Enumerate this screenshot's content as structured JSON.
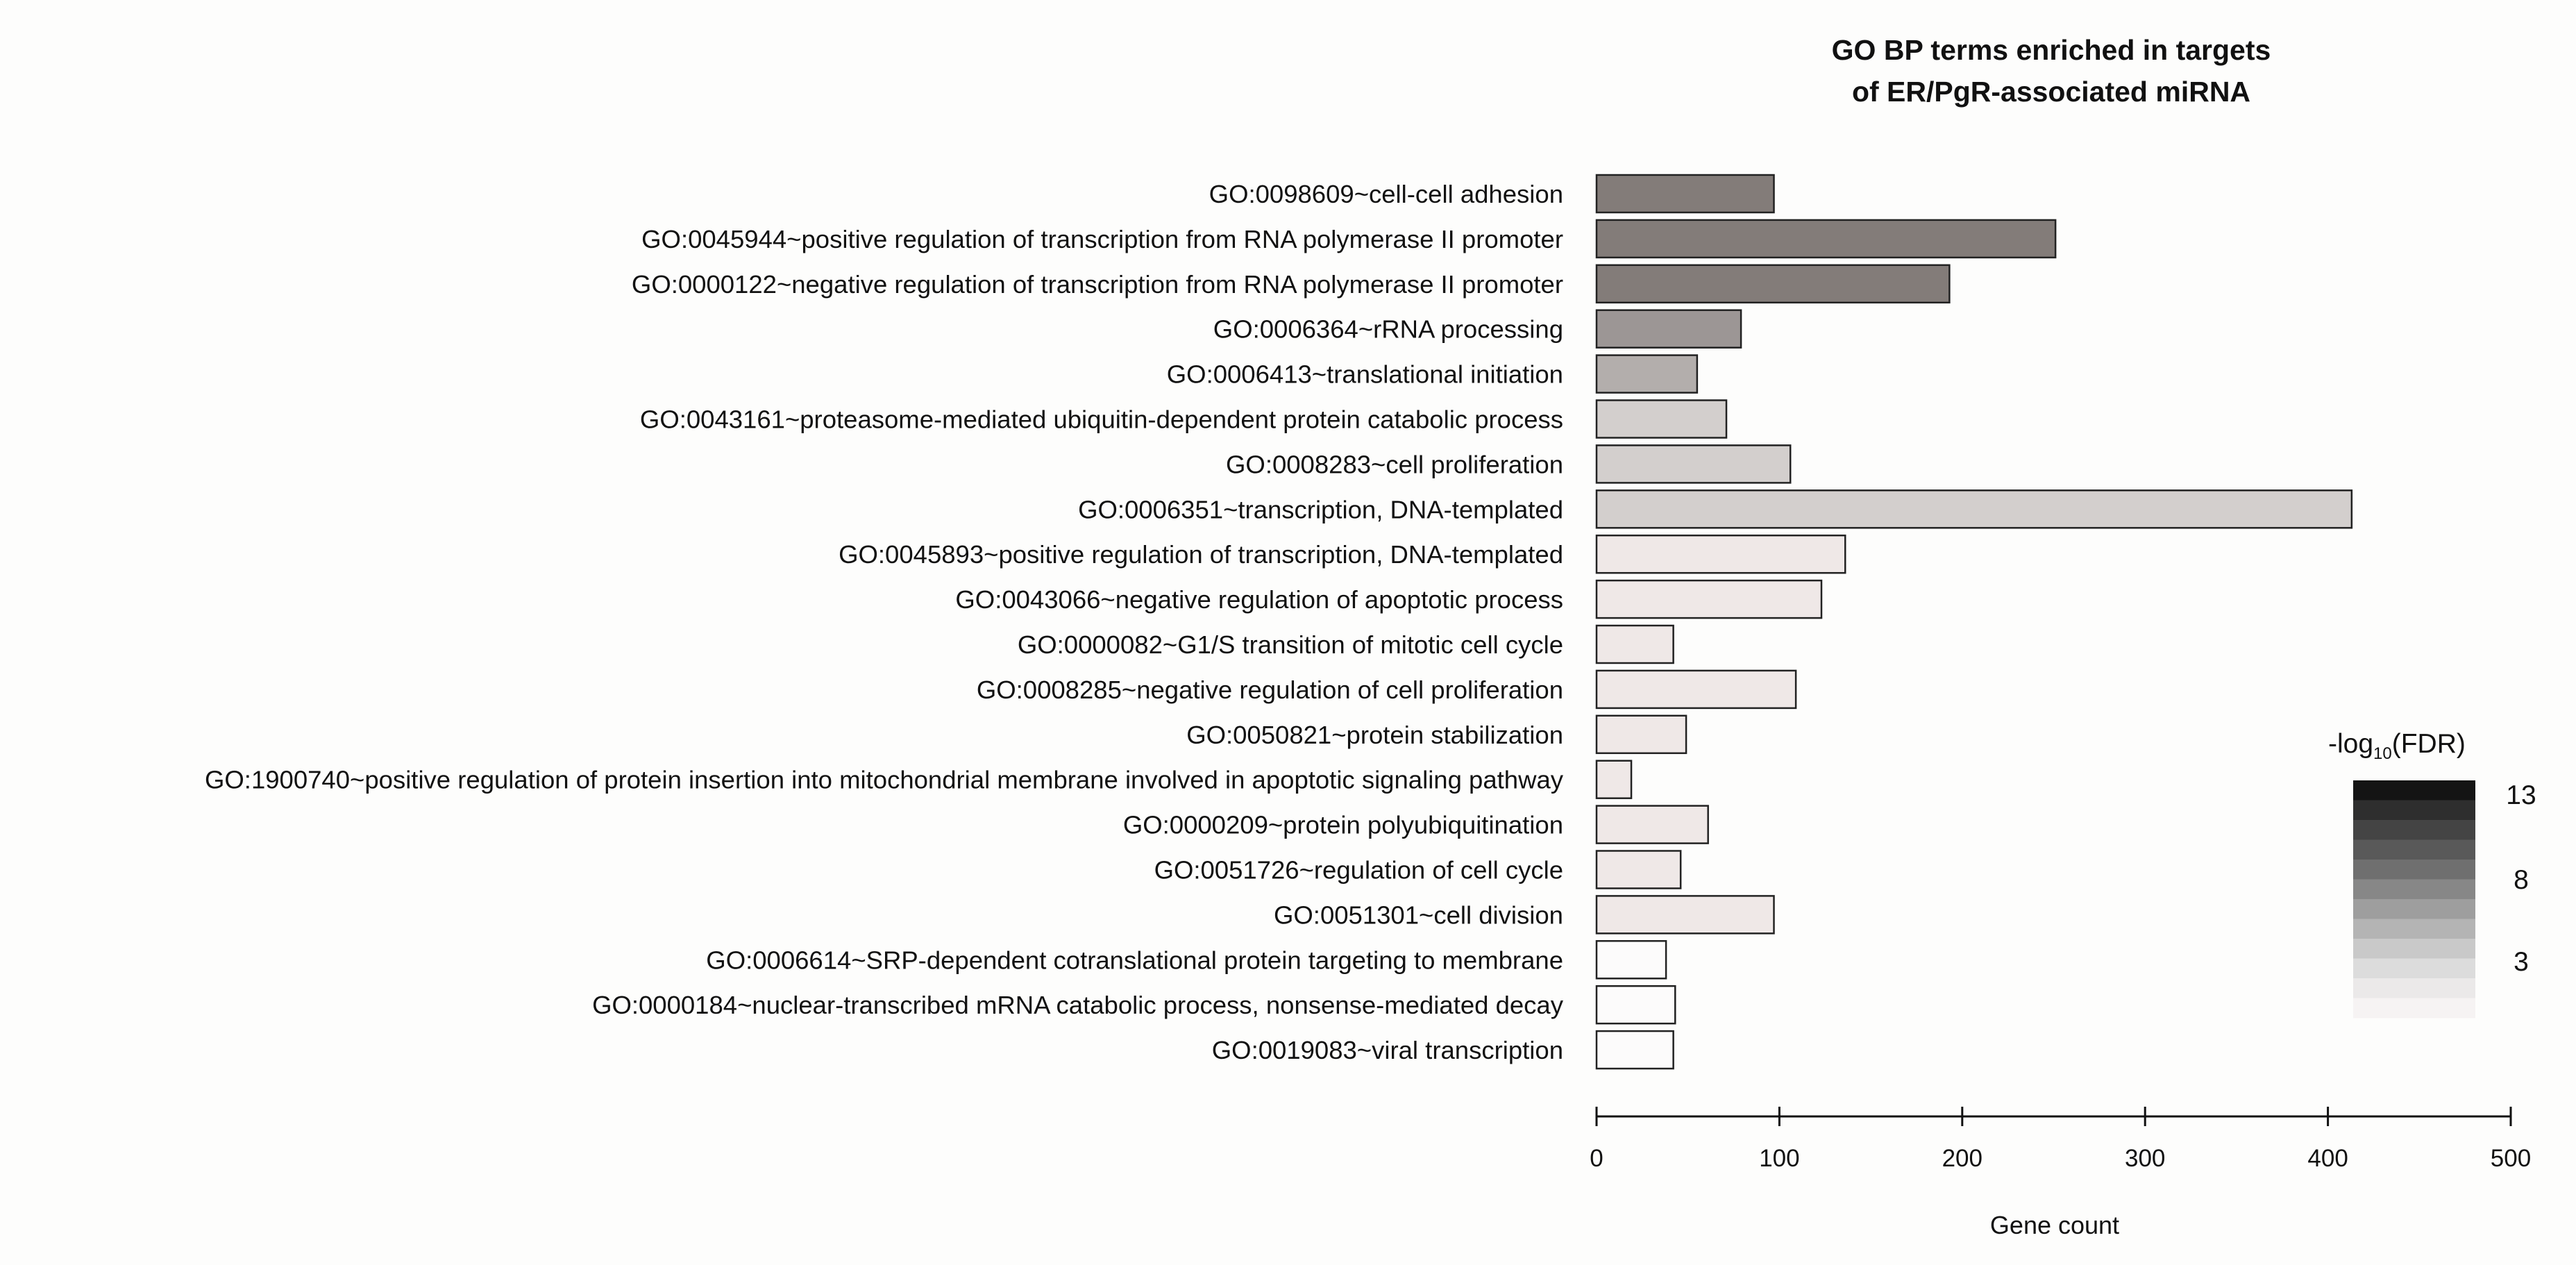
{
  "chart_data": {
    "type": "bar",
    "orientation": "horizontal",
    "title_lines": [
      "GO BP terms enriched in targets",
      "of ER/PgR-associated miRNA"
    ],
    "xlabel": "Gene count",
    "xlim": [
      0,
      500
    ],
    "xticks": [
      0,
      100,
      200,
      300,
      400,
      500
    ],
    "categories": [
      "GO:0098609~cell-cell adhesion",
      "GO:0045944~positive regulation of transcription from RNA polymerase II promoter",
      "GO:0000122~negative regulation of transcription from RNA polymerase II promoter",
      "GO:0006364~rRNA processing",
      "GO:0006413~translational initiation",
      "GO:0043161~proteasome-mediated ubiquitin-dependent protein catabolic process",
      "GO:0008283~cell proliferation",
      "GO:0006351~transcription, DNA-templated",
      "GO:0045893~positive regulation of transcription, DNA-templated",
      "GO:0043066~negative regulation of apoptotic process",
      "GO:0000082~G1/S transition of mitotic cell cycle",
      "GO:0008285~negative regulation of cell proliferation",
      "GO:0050821~protein stabilization",
      "GO:1900740~positive regulation of protein insertion into mitochondrial membrane involved in apoptotic signaling pathway",
      "GO:0000209~protein polyubiquitination",
      "GO:0051726~regulation of cell cycle",
      "GO:0051301~cell division",
      "GO:0006614~SRP-dependent cotranslational protein targeting to membrane",
      "GO:0000184~nuclear-transcribed mRNA catabolic process, nonsense-mediated decay",
      "GO:0019083~viral transcription"
    ],
    "values": [
      97,
      251,
      193,
      79,
      55,
      71,
      106,
      413,
      136,
      123,
      42,
      109,
      49,
      19,
      61,
      46,
      97,
      38,
      43,
      42
    ],
    "colors": [
      "#837c79",
      "#837c79",
      "#837c79",
      "#9c9695",
      "#b3aeac",
      "#d3cfcd",
      "#d3cfcd",
      "#d3cfcd",
      "#efe8e7",
      "#efe8e7",
      "#efe8e7",
      "#efe8e7",
      "#efe8e7",
      "#efe8e7",
      "#efe8e7",
      "#efe8e7",
      "#efe8e7",
      "#fcfbfb",
      "#fcfbfb",
      "#fcfbfb"
    ],
    "legend": {
      "title_prefix": "-log",
      "title_sub": "10",
      "title_suffix": "(FDR)",
      "labels": [
        "13",
        "8",
        "3"
      ],
      "steps": [
        "#141414",
        "#2e2e2e",
        "#444444",
        "#595959",
        "#6f6f6f",
        "#878787",
        "#9e9e9e",
        "#b4b4b4",
        "#c9c9c9",
        "#dcdcdc",
        "#ebe9e9",
        "#f6f3f3"
      ]
    }
  }
}
